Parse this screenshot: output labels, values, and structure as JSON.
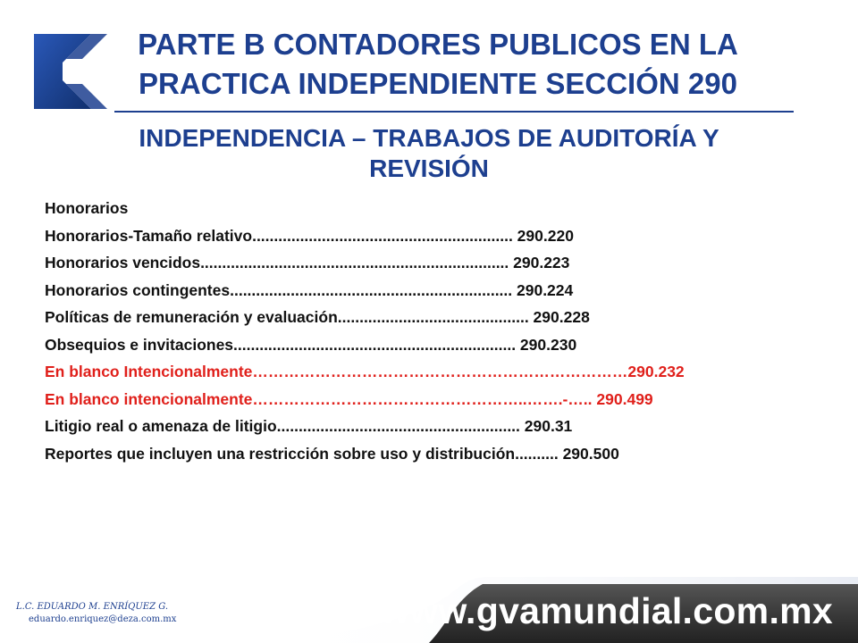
{
  "header": {
    "title_line1": "PARTE B CONTADORES PUBLICOS EN LA",
    "title_line2": "PRACTICA INDEPENDIENTE SECCIÓN 290",
    "subtitle_line1": "INDEPENDENCIA – TRABAJOS DE AUDITORÍA Y",
    "subtitle_line2": "REVISIÓN"
  },
  "toc": {
    "heading": "Honorarios",
    "items": [
      {
        "text": "Honorarios-Tamaño relativo............................................................ 290.220",
        "color": "#111111"
      },
      {
        "text": "Honorarios vencidos....................................................................... 290.223",
        "color": "#111111"
      },
      {
        "text": "Honorarios contingentes................................................................. 290.224",
        "color": "#111111"
      },
      {
        "text": "Políticas de remuneración y evaluación............................................ 290.228",
        "color": "#111111"
      },
      {
        "text": "Obsequios e invitaciones................................................................. 290.230",
        "color": "#111111"
      },
      {
        "text": "En blanco Intencionalmente………………………………………………………………290.232",
        "color": "#e0201b"
      },
      {
        "text": "En blanco intencionalmente……………………………………………..…….-….. 290.499",
        "color": "#e0201b"
      },
      {
        "text": "Litigio real o amenaza de litigio........................................................ 290.31",
        "color": "#111111"
      },
      {
        "text": "Reportes que incluyen una restricción sobre uso y distribución.......... 290.500",
        "color": "#111111"
      }
    ]
  },
  "footer": {
    "author": "L.C. EDUARDO M. ENRÍQUEZ G.",
    "email": "eduardo.enriquez@deza.com.mx",
    "url": "www.gvamundial.com.mx"
  },
  "colors": {
    "brand_blue": "#1d3f8f",
    "accent_red": "#e0201b",
    "banner_dark": "#3a3a3a"
  }
}
